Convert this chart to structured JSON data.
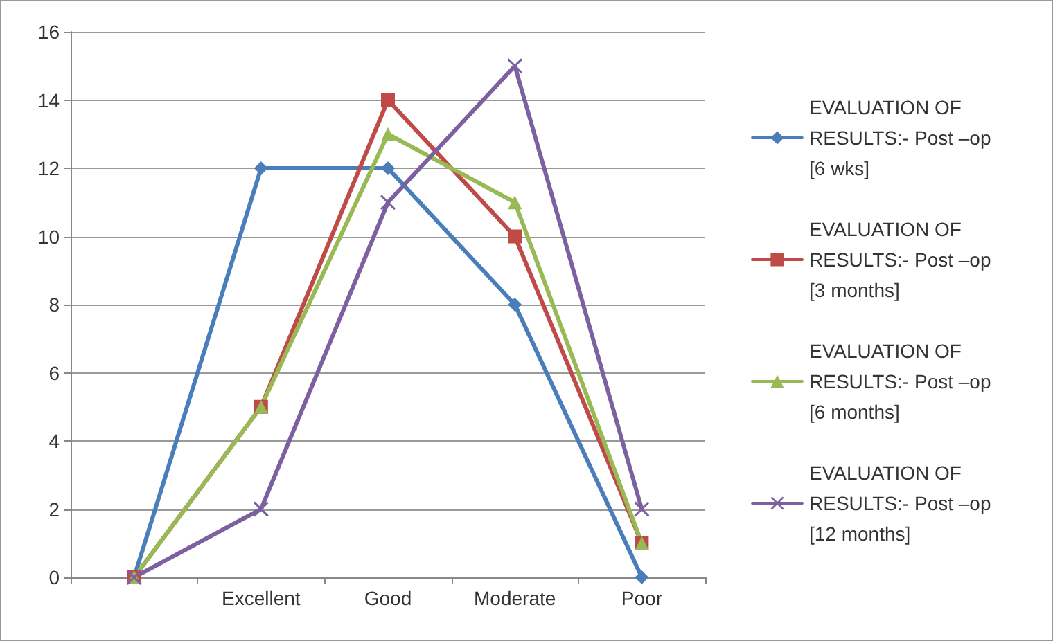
{
  "chart_data": {
    "type": "line",
    "categories": [
      null,
      "Excellent",
      "Good",
      "Moderate",
      "Poor"
    ],
    "series": [
      {
        "name": "EVALUATION OF RESULTS:- Post –op [6 wks]",
        "color": "#4a7ebb",
        "marker": "diamond",
        "values": [
          0,
          12,
          12,
          8,
          0
        ]
      },
      {
        "name": "EVALUATION OF RESULTS:- Post –op [3 months]",
        "color": "#be4b48",
        "marker": "square",
        "values": [
          0,
          5,
          14,
          10,
          1
        ]
      },
      {
        "name": "EVALUATION OF RESULTS:- Post –op [6 months]",
        "color": "#98b954",
        "marker": "triangle",
        "values": [
          0,
          5,
          13,
          11,
          1
        ]
      },
      {
        "name": "EVALUATION OF RESULTS:- Post –op [12 months]",
        "color": "#7d60a0",
        "marker": "cross",
        "values": [
          0,
          2,
          11,
          15,
          2
        ]
      }
    ],
    "ylim": [
      0,
      16
    ],
    "yticks": [
      0,
      2,
      4,
      6,
      8,
      10,
      12,
      14,
      16
    ],
    "grid": "y",
    "legend": "right",
    "line_style": "solid"
  }
}
